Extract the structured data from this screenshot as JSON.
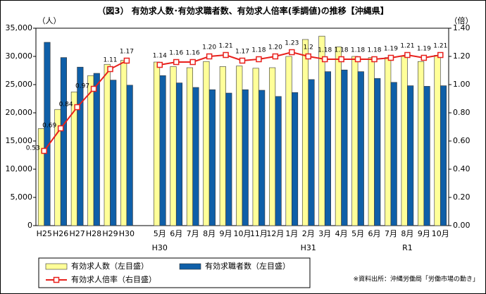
{
  "chart_data": {
    "type": "bar-line",
    "title": "（図3） 有効求人数･有効求職者数、有効求人倍率(季調値)の推移【沖縄県】",
    "y_label": "（人）",
    "y2_label": "（倍）",
    "source": "※資料出所：沖縄労働局「労働市場の動き」",
    "categories": [
      "H25",
      "H26",
      "H27",
      "H28",
      "H29",
      "H30",
      null,
      "5月",
      "6月",
      "7月",
      "8月",
      "9月",
      "10月",
      "11月",
      "12月",
      "1月",
      "2月",
      "3月",
      "4月",
      "5月",
      "6月",
      "7月",
      "8月",
      "9月",
      "10月"
    ],
    "x_sublabels": [
      null,
      null,
      null,
      null,
      null,
      null,
      null,
      "H30",
      null,
      null,
      null,
      null,
      null,
      null,
      null,
      null,
      "H31",
      null,
      null,
      null,
      null,
      null,
      "R1",
      null,
      null
    ],
    "series": [
      {
        "name": "有効求人数（左目盛）",
        "color": "#ffff99",
        "type": "bar",
        "values": [
          17200,
          20600,
          23700,
          26600,
          28600,
          29300,
          null,
          29000,
          28200,
          28000,
          29100,
          28200,
          28300,
          27900,
          28000,
          30000,
          33000,
          33600,
          31700,
          30000,
          29800,
          29800,
          30000,
          29100,
          30200
        ]
      },
      {
        "name": "有効求職者数（左目盛）",
        "color": "#0f5fa8",
        "type": "bar",
        "values": [
          32500,
          29800,
          28100,
          27000,
          25800,
          24900,
          null,
          26600,
          25300,
          24500,
          24100,
          23500,
          24100,
          24000,
          22900,
          23600,
          25900,
          27300,
          27600,
          27300,
          26100,
          25400,
          24800,
          24700,
          24800
        ]
      },
      {
        "name": "有効求人倍率（右目盛）",
        "color": "#e8201c",
        "type": "line",
        "axis": "y2",
        "values": [
          0.53,
          0.69,
          0.84,
          0.97,
          1.11,
          1.17,
          null,
          1.14,
          1.16,
          1.16,
          1.2,
          1.21,
          1.17,
          1.18,
          1.2,
          1.23,
          1.2,
          1.18,
          1.18,
          1.18,
          1.18,
          1.19,
          1.21,
          1.19,
          1.21
        ],
        "value_labels": [
          "0.53",
          "0.69",
          "0.84",
          "0.97",
          "1.11",
          "1.17",
          null,
          "1.14",
          "1.16",
          "1.16",
          "1.20",
          "1.21",
          "1.17",
          "1.18",
          "1.20",
          "1.23",
          "1.2",
          "1.18",
          "1.18",
          "1.18",
          "1.18",
          "1.19",
          "1.21",
          "1.19",
          "1.21"
        ]
      }
    ],
    "ylim": [
      0,
      35000
    ],
    "yticks": [
      0,
      {
        "value": 5000,
        "label": "5,000"
      },
      {
        "value": 10000,
        "label": "10,000"
      },
      {
        "value": 15000,
        "label": "15,000"
      },
      {
        "value": 20000,
        "label": "20,000"
      },
      {
        "value": 25000,
        "label": "25,000"
      },
      {
        "value": 30000,
        "label": "30,000"
      },
      {
        "value": 35000,
        "label": "35,000"
      }
    ],
    "y2lim": [
      0,
      1.4
    ],
    "y2ticks": [
      {
        "value": 0,
        "label": "0.00"
      },
      {
        "value": 0.2,
        "label": "0.20"
      },
      {
        "value": 0.4,
        "label": "0.40"
      },
      {
        "value": 0.6,
        "label": "0.60"
      },
      {
        "value": 0.8,
        "label": "0.80"
      },
      {
        "value": 1,
        "label": "1.00"
      },
      {
        "value": 1.2,
        "label": "1.20"
      },
      {
        "value": 1.4,
        "label": "1.40"
      }
    ],
    "grid": false,
    "legend": "bottom-left"
  }
}
